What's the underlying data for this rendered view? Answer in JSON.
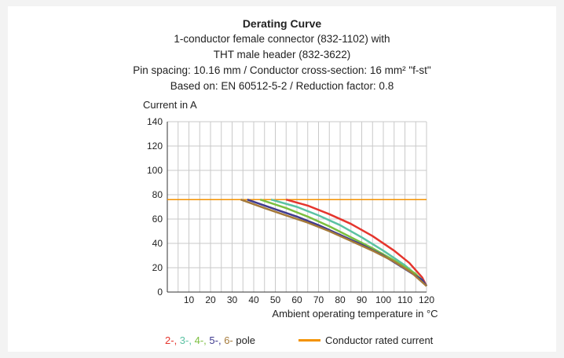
{
  "chart_data": {
    "type": "line",
    "title": "Derating Curve",
    "subtitle_lines": [
      "1-conductor female connector (832-1102) with",
      "THT male header (832-3622)",
      "Pin spacing: 10.16 mm / Conductor cross-section: 16 mm² \"f-st\"",
      "Based on: EN 60512-5-2 / Reduction factor: 0.8"
    ],
    "ylabel": "Current in A",
    "xlabel": "Ambient operating temperature in °C",
    "xlim": [
      0,
      120
    ],
    "ylim": [
      0,
      140
    ],
    "x_ticks": [
      "10",
      "20",
      "30",
      "40",
      "50",
      "60",
      "70",
      "80",
      "90",
      "100",
      "110",
      "120"
    ],
    "y_ticks": [
      "0",
      "20",
      "40",
      "60",
      "80",
      "100",
      "120",
      "140"
    ],
    "grid": true,
    "series": [
      {
        "color": "#e5352d",
        "points": [
          [
            55,
            76
          ],
          [
            65,
            71
          ],
          [
            75,
            64
          ],
          [
            85,
            56
          ],
          [
            95,
            46
          ],
          [
            105,
            34
          ],
          [
            112,
            24
          ],
          [
            118,
            12
          ],
          [
            120,
            5
          ]
        ]
      },
      {
        "color": "#5bc2a3",
        "points": [
          [
            48,
            76
          ],
          [
            60,
            70
          ],
          [
            70,
            63
          ],
          [
            80,
            55
          ],
          [
            90,
            45
          ],
          [
            100,
            34
          ],
          [
            110,
            22
          ],
          [
            118,
            10
          ],
          [
            120,
            5
          ]
        ]
      },
      {
        "color": "#7cbf3f",
        "points": [
          [
            43,
            76
          ],
          [
            55,
            69
          ],
          [
            65,
            62
          ],
          [
            75,
            54
          ],
          [
            85,
            45
          ],
          [
            95,
            36
          ],
          [
            105,
            26
          ],
          [
            115,
            15
          ],
          [
            120,
            5
          ]
        ]
      },
      {
        "color": "#3f3a8f",
        "points": [
          [
            37,
            76
          ],
          [
            50,
            68
          ],
          [
            60,
            62
          ],
          [
            70,
            55
          ],
          [
            80,
            47
          ],
          [
            90,
            39
          ],
          [
            100,
            30
          ],
          [
            110,
            19
          ],
          [
            118,
            10
          ],
          [
            120,
            5
          ]
        ]
      },
      {
        "color": "#a57a3a",
        "points": [
          [
            34,
            76
          ],
          [
            45,
            69
          ],
          [
            55,
            63
          ],
          [
            65,
            57
          ],
          [
            75,
            50
          ],
          [
            85,
            42
          ],
          [
            95,
            34
          ],
          [
            105,
            25
          ],
          [
            113,
            16
          ],
          [
            120,
            5
          ]
        ]
      }
    ],
    "reference_line": {
      "value": 76,
      "color": "#f39200"
    },
    "legend": {
      "pole_numbers": [
        {
          "text": "2-",
          "color": "#e5352d"
        },
        {
          "text": "3-",
          "color": "#5bc2a3"
        },
        {
          "text": "4-",
          "color": "#7cbf3f"
        },
        {
          "text": "5-",
          "color": "#3f3a8f"
        },
        {
          "text": "6-",
          "color": "#a57a3a"
        }
      ],
      "pole_label": "pole",
      "rated_label": "Conductor rated current"
    }
  }
}
